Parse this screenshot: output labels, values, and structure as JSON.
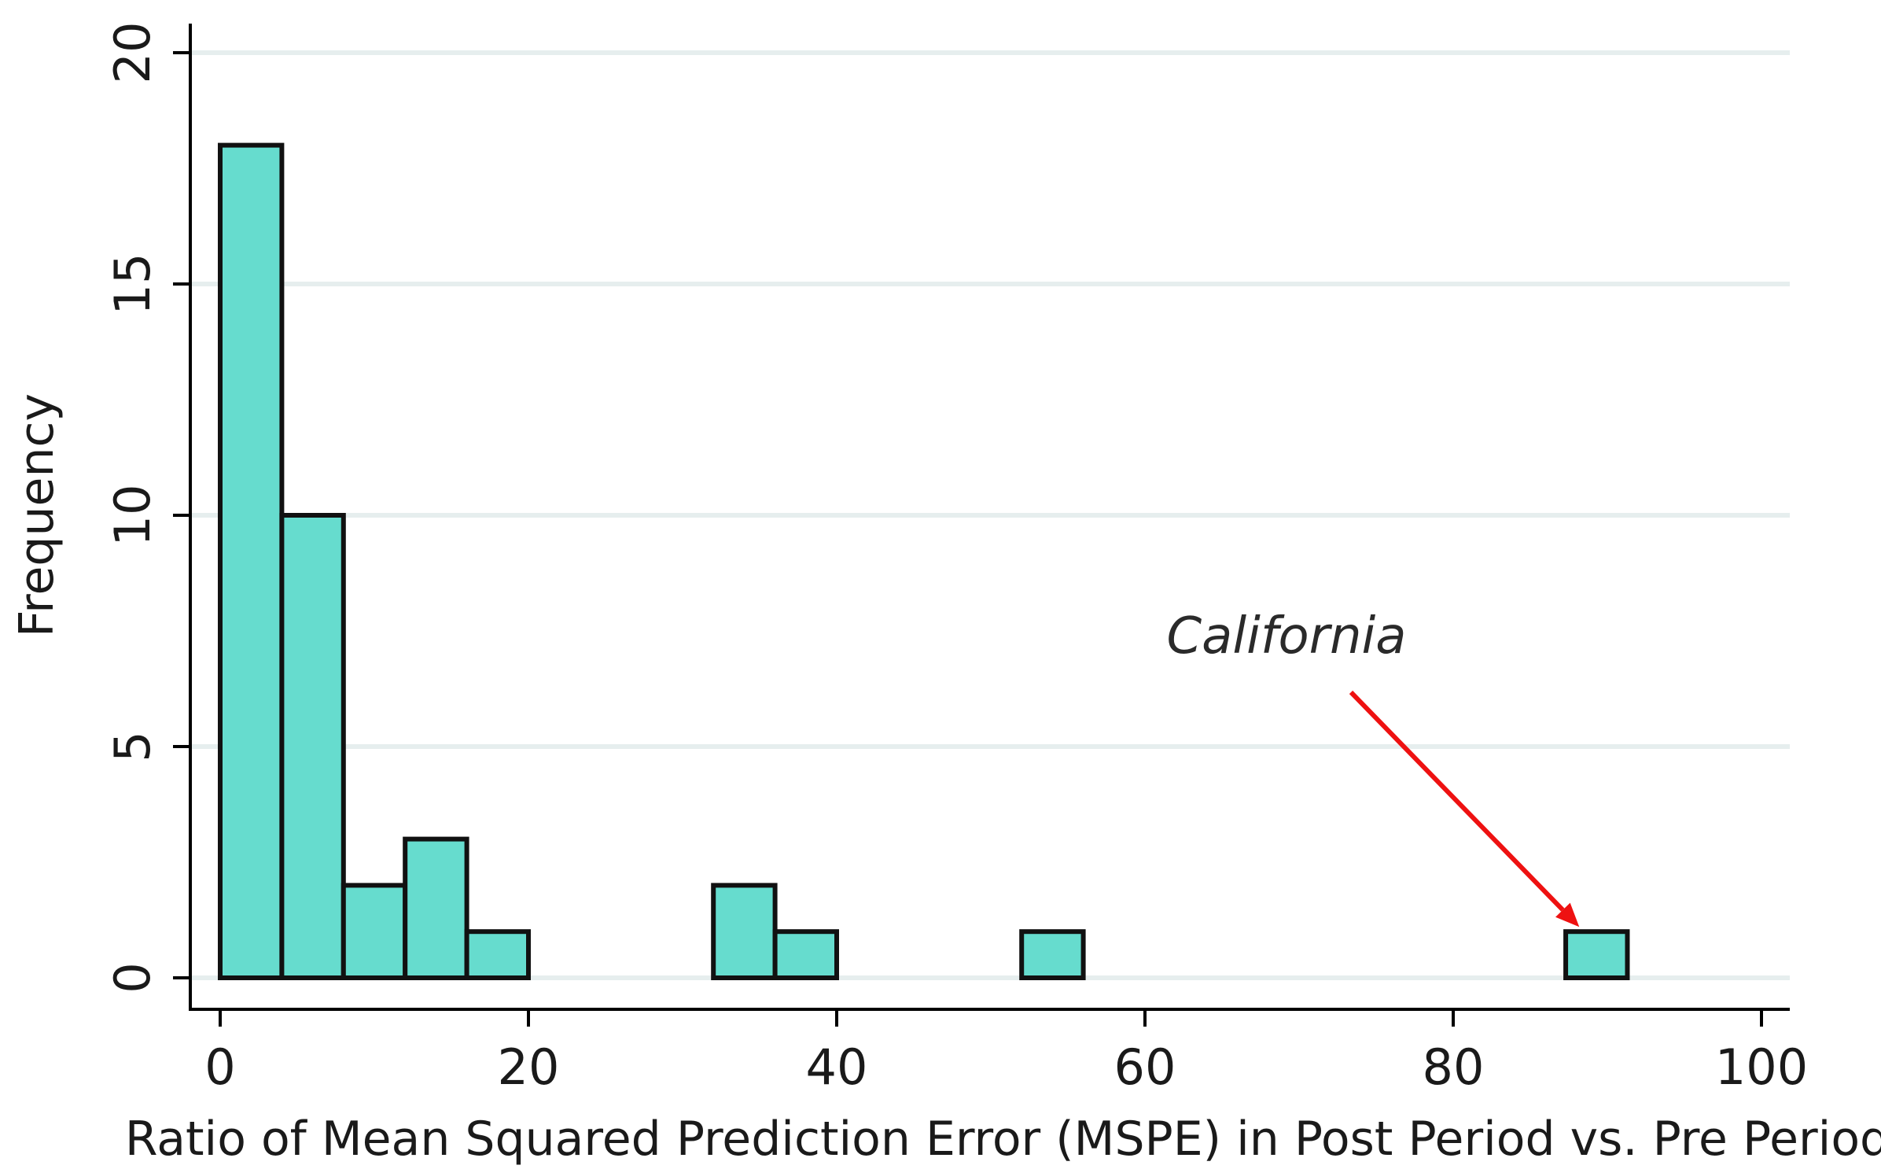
{
  "chart_data": {
    "type": "bar",
    "subtype": "histogram",
    "title": "",
    "xlabel": "Ratio of Mean Squared Prediction Error (MSPE) in Post Period vs. Pre Period",
    "ylabel": "Frequency",
    "xlim": [
      0,
      100
    ],
    "ylim": [
      0,
      20
    ],
    "xticks": [
      0,
      20,
      40,
      60,
      80,
      100
    ],
    "yticks": [
      0,
      5,
      10,
      15,
      20
    ],
    "grid": "horizontal",
    "bin_width": 4,
    "bins": [
      {
        "start": 0,
        "end": 4,
        "count": 18
      },
      {
        "start": 4,
        "end": 8,
        "count": 10
      },
      {
        "start": 8,
        "end": 12,
        "count": 2
      },
      {
        "start": 12,
        "end": 16,
        "count": 3
      },
      {
        "start": 16,
        "end": 20,
        "count": 1
      },
      {
        "start": 32,
        "end": 36,
        "count": 2
      },
      {
        "start": 36,
        "end": 40,
        "count": 1
      },
      {
        "start": 52,
        "end": 56,
        "count": 1
      },
      {
        "start": 87.3,
        "end": 91.3,
        "count": 1
      }
    ],
    "colors": {
      "bar_fill": "#66dcce",
      "bar_stroke": "#111111",
      "grid": "#e6eeee",
      "axis": "#000000",
      "arrow": "#ee1111"
    },
    "annotation": {
      "text": "California",
      "points_to_x": 89.3,
      "points_to_y": 1
    }
  }
}
